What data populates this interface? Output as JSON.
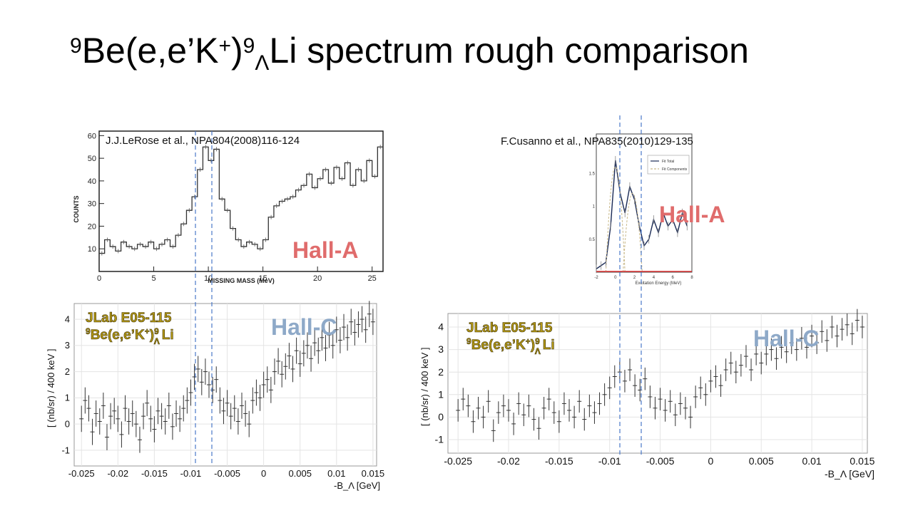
{
  "slide": {
    "title_parts": {
      "sup1": "9",
      "pre": "Be(e,e’K",
      "sup2": "+",
      "mid": ")",
      "sup3": "9",
      "sub1": "Λ",
      "post": "Li spectrum rough comparison"
    },
    "ref_lerose": "J.J.LeRose et al., NPA804(2008)116-124",
    "ref_cusanno": "F.Cusanno et al., NPA835(2010)129-135",
    "hall_a_label": "Hall-A",
    "hall_c_label": "Hall-C",
    "jlab_line1": "JLab E05-115",
    "jlab_line2_parts": {
      "sup1": "9",
      "pre": "Be(e,e’K",
      "sup2": "+",
      "mid": ")",
      "sup3": "9",
      "sub1": "Λ",
      "post": "Li"
    },
    "colors": {
      "hall_a": "#e06c6c",
      "hall_c": "#8ea9c8",
      "jlab": "#b59a16",
      "guide": "#4a78c8"
    }
  },
  "chart_data": [
    {
      "id": "hallA_missing_mass",
      "type": "line",
      "title": "",
      "xlabel": "MISSING MASS (MeV)",
      "ylabel": "COUNTS",
      "xlim": [
        0,
        26
      ],
      "ylim": [
        0,
        62
      ],
      "xticks": [
        "0",
        "5",
        "10",
        "15",
        "20",
        "25"
      ],
      "yticks": [
        "10",
        "20",
        "30",
        "40",
        "50",
        "60"
      ],
      "annotation": "Hall-A",
      "x": [
        0,
        0.5,
        1,
        1.5,
        2,
        2.5,
        3,
        3.5,
        4,
        4.5,
        5,
        5.5,
        6,
        6.5,
        7,
        7.5,
        8,
        8.5,
        9,
        9.5,
        10,
        10.5,
        11,
        11.5,
        12,
        12.5,
        13,
        13.5,
        14,
        14.5,
        15,
        15.5,
        16,
        16.5,
        17,
        17.5,
        18,
        18.5,
        19,
        19.5,
        20,
        20.5,
        21,
        21.5,
        22,
        22.5,
        23,
        23.5,
        24,
        24.5,
        25,
        25.5
      ],
      "values": [
        8,
        14,
        11,
        9,
        13,
        11,
        10,
        12,
        11,
        13,
        10,
        12,
        14,
        11,
        16,
        21,
        27,
        33,
        45,
        55,
        49,
        54,
        32,
        27,
        19,
        14,
        11,
        13,
        12,
        10,
        14,
        24,
        29,
        31,
        32,
        33,
        36,
        38,
        43,
        37,
        41,
        45,
        39,
        46,
        41,
        48,
        38,
        45,
        40,
        49,
        42,
        55
      ]
    },
    {
      "id": "hallA_excitation",
      "type": "line",
      "title": "",
      "xlabel": "Excitation Energy (MeV)",
      "ylabel": "",
      "xlim": [
        -2,
        8
      ],
      "ylim": [
        0,
        2.1
      ],
      "xticks": [
        "-2",
        "0",
        "2",
        "4",
        "6",
        "8"
      ],
      "yticks": [
        "0.5",
        "1",
        "1.5",
        "2"
      ],
      "legend": [
        "Fit Total",
        "Fit Components"
      ],
      "x": [
        -2,
        -1.5,
        -1,
        -0.5,
        0,
        0.5,
        1,
        1.5,
        2,
        2.5,
        3,
        3.5,
        4,
        4.5,
        5,
        5.5,
        6,
        6.5,
        7,
        7.5
      ],
      "values": [
        0.05,
        0.1,
        0.15,
        0.7,
        1.7,
        1.2,
        0.9,
        1.3,
        1.1,
        0.7,
        0.4,
        0.5,
        0.8,
        0.6,
        0.9,
        0.7,
        0.8,
        0.6,
        0.9,
        0.7
      ]
    },
    {
      "id": "hallC_left",
      "type": "scatter",
      "title": "",
      "xlabel": "-B_Λ [GeV]",
      "ylabel": "[ (nb/sr) / 400 keV ]",
      "xlim": [
        -0.026,
        0.0155
      ],
      "ylim": [
        -1.6,
        4.6
      ],
      "xticks": [
        "-0.025",
        "-0.02",
        "-0.015",
        "-0.01",
        "-0.005",
        "0",
        "0.005",
        "0.01",
        "0.015"
      ],
      "yticks": [
        "-1",
        "0",
        "1",
        "2",
        "3",
        "4"
      ],
      "annotation": "Hall-C",
      "x": [
        -0.025,
        -0.0245,
        -0.024,
        -0.0235,
        -0.023,
        -0.0225,
        -0.022,
        -0.0215,
        -0.021,
        -0.0205,
        -0.02,
        -0.0195,
        -0.019,
        -0.0185,
        -0.018,
        -0.0175,
        -0.017,
        -0.0165,
        -0.016,
        -0.0155,
        -0.015,
        -0.0145,
        -0.014,
        -0.0135,
        -0.013,
        -0.0125,
        -0.012,
        -0.0115,
        -0.011,
        -0.0105,
        -0.01,
        -0.0095,
        -0.009,
        -0.0085,
        -0.008,
        -0.0075,
        -0.007,
        -0.0065,
        -0.006,
        -0.0055,
        -0.005,
        -0.0045,
        -0.004,
        -0.0035,
        -0.003,
        -0.0025,
        -0.002,
        -0.0015,
        -0.001,
        -0.0005,
        0,
        0.0005,
        0.001,
        0.0015,
        0.002,
        0.0025,
        0.003,
        0.0035,
        0.004,
        0.0045,
        0.005,
        0.0055,
        0.006,
        0.0065,
        0.007,
        0.0075,
        0.008,
        0.0085,
        0.009,
        0.0095,
        0.01,
        0.0105,
        0.011,
        0.0115,
        0.012,
        0.0125,
        0.013,
        0.0135,
        0.014,
        0.0145,
        0.015
      ],
      "values": [
        0.2,
        0.9,
        0.6,
        -0.3,
        0.4,
        0.1,
        0.7,
        -0.5,
        0.3,
        0.5,
        0.2,
        -0.4,
        0.6,
        0.1,
        0.4,
        0.0,
        -0.6,
        0.3,
        0.8,
        0.2,
        -0.2,
        0.5,
        0.3,
        0.1,
        0.7,
        -0.1,
        0.4,
        0.2,
        0.6,
        0.9,
        1.2,
        1.8,
        2.1,
        1.6,
        2.0,
        1.5,
        1.3,
        1.7,
        0.9,
        0.5,
        0.8,
        0.3,
        0.6,
        0.1,
        0.7,
        0.4,
        0.0,
        0.9,
        1.2,
        1.0,
        1.5,
        1.7,
        1.3,
        2.0,
        2.4,
        1.9,
        2.2,
        2.6,
        2.1,
        2.8,
        2.3,
        2.7,
        3.0,
        2.5,
        3.1,
        2.8,
        3.3,
        2.9,
        3.4,
        3.0,
        3.6,
        3.2,
        3.7,
        3.3,
        3.9,
        3.5,
        3.8,
        4.0,
        3.6,
        4.2,
        3.9
      ],
      "error": 0.5
    },
    {
      "id": "hallC_right",
      "type": "scatter",
      "title": "",
      "xlabel": "-B_Λ [GeV]",
      "ylabel": "[ (nb/sr) / 400 keV ]",
      "xlim": [
        -0.026,
        0.0155
      ],
      "ylim": [
        -1.6,
        4.6
      ],
      "xticks": [
        "-0.025",
        "-0.02",
        "-0.015",
        "-0.01",
        "-0.005",
        "0",
        "0.005",
        "0.01",
        "0.015"
      ],
      "yticks": [
        "-1",
        "0",
        "1",
        "2",
        "3",
        "4"
      ],
      "annotation": "Hall-C",
      "x": [
        -0.025,
        -0.0245,
        -0.024,
        -0.0235,
        -0.023,
        -0.0225,
        -0.022,
        -0.0215,
        -0.021,
        -0.0205,
        -0.02,
        -0.0195,
        -0.019,
        -0.0185,
        -0.018,
        -0.0175,
        -0.017,
        -0.0165,
        -0.016,
        -0.0155,
        -0.015,
        -0.0145,
        -0.014,
        -0.0135,
        -0.013,
        -0.0125,
        -0.012,
        -0.0115,
        -0.011,
        -0.0105,
        -0.01,
        -0.0095,
        -0.009,
        -0.0085,
        -0.008,
        -0.0075,
        -0.007,
        -0.0065,
        -0.006,
        -0.0055,
        -0.005,
        -0.0045,
        -0.004,
        -0.0035,
        -0.003,
        -0.0025,
        -0.002,
        -0.0015,
        -0.001,
        -0.0005,
        0,
        0.0005,
        0.001,
        0.0015,
        0.002,
        0.0025,
        0.003,
        0.0035,
        0.004,
        0.0045,
        0.005,
        0.0055,
        0.006,
        0.0065,
        0.007,
        0.0075,
        0.008,
        0.0085,
        0.009,
        0.0095,
        0.01,
        0.0105,
        0.011,
        0.0115,
        0.012,
        0.0125,
        0.013,
        0.0135,
        0.014,
        0.0145,
        0.015
      ],
      "values": [
        0.3,
        0.8,
        0.5,
        -0.2,
        0.4,
        0.0,
        0.7,
        -0.6,
        0.2,
        0.5,
        0.3,
        -0.3,
        0.6,
        0.1,
        0.5,
        -0.1,
        -0.5,
        0.4,
        0.8,
        0.2,
        -0.2,
        0.6,
        0.3,
        0.0,
        0.7,
        -0.1,
        0.5,
        0.2,
        0.6,
        1.0,
        1.3,
        1.8,
        2.0,
        1.6,
        2.1,
        1.4,
        1.2,
        1.7,
        0.9,
        0.4,
        0.8,
        0.3,
        0.7,
        0.1,
        0.6,
        0.4,
        0.0,
        0.9,
        1.3,
        1.0,
        1.6,
        1.8,
        1.4,
        2.1,
        2.4,
        2.0,
        2.3,
        2.7,
        2.1,
        2.8,
        2.4,
        2.8,
        3.0,
        2.6,
        3.1,
        2.9,
        3.3,
        3.0,
        3.5,
        3.1,
        3.6,
        3.3,
        3.8,
        3.4,
        4.0,
        3.6,
        3.9,
        4.1,
        3.7,
        4.3,
        4.0
      ],
      "error": 0.5
    }
  ]
}
